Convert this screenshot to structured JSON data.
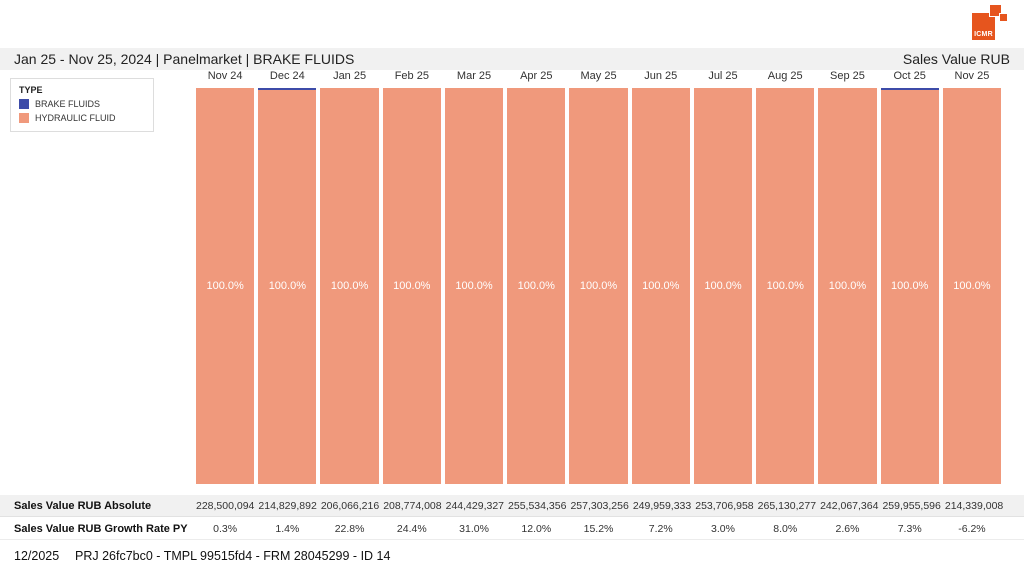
{
  "header": {
    "title": "Jan 25 - Nov 25, 2024 | Panelmarket | BRAKE FLUIDS",
    "right_label": "Sales Value RUB"
  },
  "logo": {
    "text": "ICMR",
    "color": "#e6551e"
  },
  "legend": {
    "title": "TYPE",
    "items": [
      {
        "label": "BRAKE FLUIDS",
        "color": "#3d4ba8"
      },
      {
        "label": "HYDRAULIC FLUID",
        "color": "#f0997c"
      }
    ]
  },
  "chart_data": {
    "type": "bar",
    "stacked": true,
    "orientation": "vertical",
    "title": "Jan 25 - Nov 25, 2024 | Panelmarket | BRAKE FLUIDS",
    "unit": "Sales Value RUB share (%)",
    "ylim": [
      0,
      100
    ],
    "grid": false,
    "legend_position": "top-left",
    "categories": [
      "Nov 24",
      "Dec 24",
      "Jan 25",
      "Feb 25",
      "Mar 25",
      "Apr 25",
      "May 25",
      "Jun 25",
      "Jul 25",
      "Aug 25",
      "Sep 25",
      "Oct 25",
      "Nov 25"
    ],
    "series": [
      {
        "name": "BRAKE FLUIDS",
        "color": "#3d4ba8",
        "values_pct": [
          0,
          0.5,
          0,
          0,
          0,
          0,
          0,
          0,
          0,
          0,
          0,
          0.5,
          0
        ]
      },
      {
        "name": "HYDRAULIC FLUID",
        "color": "#f0997c",
        "values_pct": [
          100,
          99.5,
          100,
          100,
          100,
          100,
          100,
          100,
          100,
          100,
          100,
          99.5,
          100
        ]
      }
    ],
    "bar_labels": [
      "100.0%",
      "100.0%",
      "100.0%",
      "100.0%",
      "100.0%",
      "100.0%",
      "100.0%",
      "100.0%",
      "100.0%",
      "100.0%",
      "100.0%",
      "100.0%",
      "100.0%"
    ],
    "absolute_values": [
      228500094,
      214829892,
      206066216,
      208774008,
      244429327,
      255534356,
      257303256,
      249959333,
      253706958,
      265130277,
      242067364,
      259955596,
      214339008
    ],
    "growth_rate_py_pct": [
      0.3,
      1.4,
      22.8,
      24.4,
      31.0,
      12.0,
      15.2,
      7.2,
      3.0,
      8.0,
      2.6,
      7.3,
      -6.2
    ],
    "table": {
      "rows": [
        {
          "label": "Sales Value RUB Absolute",
          "values": [
            "228,500,094",
            "214,829,892",
            "206,066,216",
            "208,774,008",
            "244,429,327",
            "255,534,356",
            "257,303,256",
            "249,959,333",
            "253,706,958",
            "265,130,277",
            "242,067,364",
            "259,955,596",
            "214,339,008"
          ]
        },
        {
          "label": "Sales Value RUB Growth Rate PY",
          "values": [
            "0.3%",
            "1.4%",
            "22.8%",
            "24.4%",
            "31.0%",
            "12.0%",
            "15.2%",
            "7.2%",
            "3.0%",
            "8.0%",
            "2.6%",
            "7.3%",
            "-6.2%"
          ]
        }
      ]
    }
  },
  "footer": {
    "period": "12/2025",
    "reference": "PRJ 26fc7bc0 - TMPL 99515fd4 - FRM 28045299 - ID 14"
  }
}
